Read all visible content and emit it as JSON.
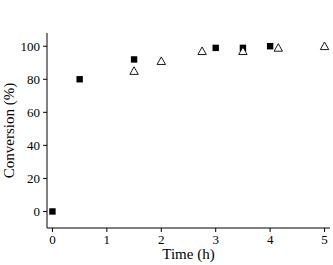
{
  "chart_data": {
    "type": "scatter",
    "x_label": "Time (h)",
    "y_label": "Conversion (%)",
    "xlim": [
      -0.1,
      5.1
    ],
    "xticks": [
      0,
      1,
      2,
      3,
      4,
      5
    ],
    "ylim": [
      -10,
      108
    ],
    "yticks": [
      0,
      20,
      40,
      60,
      80,
      100
    ],
    "series": [
      {
        "color": "#000000",
        "marker": "square",
        "x": [
          0,
          0.5,
          1.5,
          3,
          3.5,
          4
        ],
        "values": [
          0,
          80,
          92,
          99,
          99,
          100
        ]
      },
      {
        "color": "#000000",
        "marker": "triangle",
        "x": [
          1.5,
          2,
          2.75,
          3.5,
          4.15,
          5
        ],
        "values": [
          85,
          91,
          97,
          97,
          99,
          100
        ]
      }
    ]
  }
}
